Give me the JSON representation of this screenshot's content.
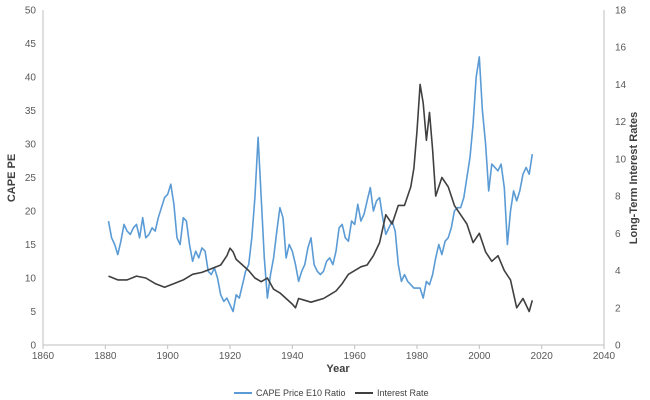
{
  "chart_data": {
    "type": "line",
    "xlabel": "Year",
    "ylabel": "CAPE PE",
    "y2label": "Long-Term Interest Rates",
    "xlim": [
      1860,
      2040
    ],
    "ylim": [
      0,
      50
    ],
    "y2lim": [
      0,
      18
    ],
    "x_ticks": [
      1860,
      1880,
      1900,
      1920,
      1940,
      1960,
      1980,
      2000,
      2020,
      2040
    ],
    "y_ticks": [
      0,
      5,
      10,
      15,
      20,
      25,
      30,
      35,
      40,
      45,
      50
    ],
    "y2_ticks": [
      0,
      2,
      4,
      6,
      8,
      10,
      12,
      14,
      16,
      18
    ],
    "grid": false,
    "legend_position": "bottom",
    "series": [
      {
        "name": "CAPE Price E10 Ratio",
        "axis": "left",
        "color": "#5b9bd5",
        "x": [
          1881,
          1882,
          1883,
          1884,
          1885,
          1886,
          1887,
          1888,
          1889,
          1890,
          1891,
          1892,
          1893,
          1894,
          1895,
          1896,
          1897,
          1898,
          1899,
          1900,
          1901,
          1902,
          1903,
          1904,
          1905,
          1906,
          1907,
          1908,
          1909,
          1910,
          1911,
          1912,
          1913,
          1914,
          1915,
          1916,
          1917,
          1918,
          1919,
          1920,
          1921,
          1922,
          1923,
          1924,
          1925,
          1926,
          1927,
          1928,
          1929,
          1930,
          1931,
          1932,
          1933,
          1934,
          1935,
          1936,
          1937,
          1938,
          1939,
          1940,
          1941,
          1942,
          1943,
          1944,
          1945,
          1946,
          1947,
          1948,
          1949,
          1950,
          1951,
          1952,
          1953,
          1954,
          1955,
          1956,
          1957,
          1958,
          1959,
          1960,
          1961,
          1962,
          1963,
          1964,
          1965,
          1966,
          1967,
          1968,
          1969,
          1970,
          1971,
          1972,
          1973,
          1974,
          1975,
          1976,
          1977,
          1978,
          1979,
          1980,
          1981,
          1982,
          1983,
          1984,
          1985,
          1986,
          1987,
          1988,
          1989,
          1990,
          1991,
          1992,
          1993,
          1994,
          1995,
          1996,
          1997,
          1998,
          1999,
          2000,
          2001,
          2002,
          2003,
          2004,
          2005,
          2006,
          2007,
          2008,
          2009,
          2010,
          2011,
          2012,
          2013,
          2014,
          2015,
          2016,
          2017
        ],
        "values": [
          18.5,
          16.0,
          15.0,
          13.5,
          15.5,
          18.0,
          17.0,
          16.5,
          17.5,
          18.0,
          16.0,
          19.0,
          16.0,
          16.5,
          17.5,
          17.0,
          19.0,
          20.5,
          22.0,
          22.5,
          24.0,
          21.0,
          16.0,
          15.0,
          19.0,
          18.5,
          15.0,
          12.5,
          14.0,
          13.0,
          14.5,
          14.0,
          11.0,
          10.5,
          11.5,
          10.0,
          7.5,
          6.5,
          7.0,
          6.0,
          5.0,
          7.5,
          7.0,
          9.0,
          11.0,
          12.0,
          16.0,
          22.0,
          31.0,
          22.0,
          13.0,
          7.0,
          10.5,
          13.0,
          17.0,
          20.5,
          19.0,
          13.0,
          15.0,
          14.0,
          12.0,
          9.5,
          11.0,
          12.0,
          14.5,
          16.0,
          12.0,
          11.0,
          10.5,
          11.0,
          12.5,
          13.0,
          12.0,
          14.0,
          17.5,
          18.0,
          16.0,
          15.5,
          18.5,
          18.0,
          21.0,
          18.5,
          19.5,
          21.5,
          23.5,
          20.0,
          21.5,
          22.0,
          19.0,
          16.5,
          17.5,
          18.5,
          17.0,
          12.0,
          9.5,
          10.5,
          9.5,
          9.0,
          8.5,
          8.5,
          8.5,
          7.0,
          9.5,
          9.0,
          10.5,
          13.0,
          15.0,
          13.5,
          15.5,
          16.0,
          17.5,
          20.0,
          20.5,
          20.5,
          22.0,
          25.0,
          28.0,
          33.0,
          40.0,
          43.0,
          35.0,
          30.0,
          23.0,
          27.0,
          26.5,
          26.0,
          27.0,
          23.5,
          15.0,
          20.0,
          23.0,
          21.5,
          23.0,
          25.5,
          26.5,
          25.5,
          28.5
        ]
      },
      {
        "name": "Interest Rate",
        "axis": "right",
        "color": "#404040",
        "x": [
          1881,
          1884,
          1887,
          1890,
          1893,
          1896,
          1899,
          1902,
          1905,
          1908,
          1911,
          1914,
          1917,
          1919,
          1920,
          1921,
          1922,
          1924,
          1926,
          1928,
          1930,
          1932,
          1934,
          1936,
          1938,
          1940,
          1941,
          1942,
          1944,
          1946,
          1948,
          1950,
          1952,
          1954,
          1956,
          1958,
          1960,
          1962,
          1964,
          1966,
          1968,
          1970,
          1972,
          1974,
          1976,
          1978,
          1979,
          1980,
          1981,
          1982,
          1983,
          1984,
          1985,
          1986,
          1987,
          1988,
          1990,
          1992,
          1994,
          1996,
          1998,
          2000,
          2002,
          2004,
          2006,
          2008,
          2010,
          2012,
          2014,
          2016,
          2017
        ],
        "values": [
          3.7,
          3.5,
          3.5,
          3.7,
          3.6,
          3.3,
          3.1,
          3.3,
          3.5,
          3.8,
          3.9,
          4.1,
          4.3,
          4.8,
          5.2,
          5.0,
          4.6,
          4.3,
          4.0,
          3.6,
          3.4,
          3.6,
          3.0,
          2.8,
          2.5,
          2.2,
          2.0,
          2.5,
          2.4,
          2.3,
          2.4,
          2.5,
          2.7,
          2.9,
          3.3,
          3.8,
          4.0,
          4.2,
          4.3,
          4.8,
          5.5,
          7.0,
          6.5,
          7.5,
          7.5,
          8.5,
          9.5,
          11.5,
          14.0,
          13.0,
          11.0,
          12.5,
          10.5,
          8.0,
          8.5,
          9.0,
          8.5,
          7.5,
          7.0,
          6.5,
          5.5,
          6.0,
          5.0,
          4.5,
          4.8,
          4.0,
          3.5,
          2.0,
          2.5,
          1.8,
          2.4
        ]
      }
    ]
  }
}
